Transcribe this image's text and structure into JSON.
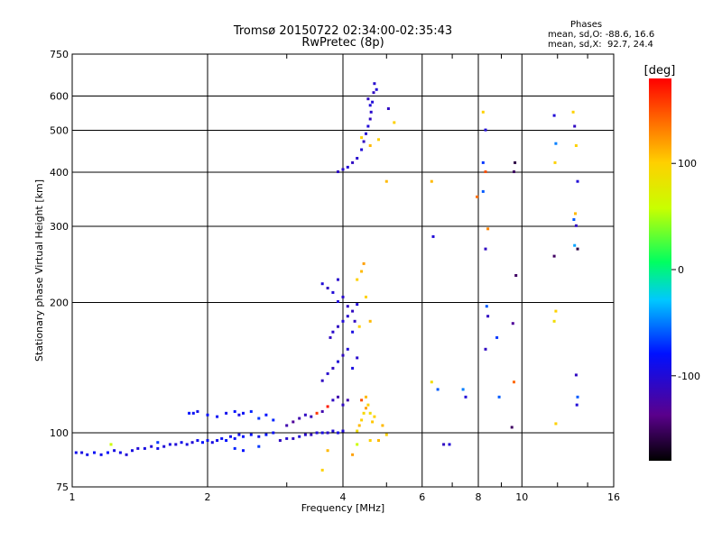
{
  "header": {
    "title_line1": "Tromsø 20150722 02:34:00-02:35:43",
    "title_line2": "RwPretec (8p)",
    "phases_heading": "Phases",
    "phases_o": "mean, sd,O: -88.6, 16.6",
    "phases_x": "mean, sd,X:  92.7, 24.4"
  },
  "colorbar": {
    "unit_label": "[deg]",
    "ticks": [
      {
        "value": 100,
        "label": "100"
      },
      {
        "value": 0,
        "label": "0"
      },
      {
        "value": -100,
        "label": "-100"
      }
    ],
    "range": [
      -180,
      180
    ]
  },
  "chart_data": {
    "type": "scatter",
    "xlabel": "Frequency [MHz]",
    "ylabel": "Stationary phase Virtual Height [km]",
    "x_scale": "log",
    "y_scale": "log",
    "xlim": [
      1,
      16
    ],
    "ylim": [
      75,
      750
    ],
    "x_ticks": [
      1,
      2,
      4,
      6,
      8,
      10,
      16
    ],
    "x_tick_labels": [
      "1",
      "2",
      "4",
      "6",
      "8",
      "10",
      "16"
    ],
    "y_ticks": [
      75,
      100,
      200,
      300,
      400,
      500,
      600,
      750
    ],
    "y_tick_labels": [
      "75",
      "100",
      "200",
      "300",
      "400",
      "500",
      "600",
      "750"
    ],
    "grid": true,
    "color_scale": "phase [deg], -180 to 180, black-purple-blue-cyan-green-yellow-orange-red",
    "points": [
      [
        1.02,
        90,
        -90
      ],
      [
        1.05,
        90,
        -95
      ],
      [
        1.08,
        89,
        -90
      ],
      [
        1.12,
        90,
        -85
      ],
      [
        1.16,
        89,
        -90
      ],
      [
        1.2,
        90,
        -80
      ],
      [
        1.24,
        91,
        -95
      ],
      [
        1.28,
        90,
        -90
      ],
      [
        1.32,
        89,
        -100
      ],
      [
        1.36,
        91,
        -95
      ],
      [
        1.4,
        92,
        -100
      ],
      [
        1.45,
        92,
        -95
      ],
      [
        1.5,
        93,
        -100
      ],
      [
        1.55,
        92,
        -90
      ],
      [
        1.6,
        93,
        -100
      ],
      [
        1.65,
        94,
        -95
      ],
      [
        1.7,
        94,
        -100
      ],
      [
        1.75,
        95,
        -90
      ],
      [
        1.8,
        94,
        -95
      ],
      [
        1.85,
        95,
        -100
      ],
      [
        1.9,
        96,
        -90
      ],
      [
        1.95,
        95,
        -80
      ],
      [
        2.0,
        96,
        -85
      ],
      [
        2.05,
        95,
        -95
      ],
      [
        2.1,
        96,
        -90
      ],
      [
        2.15,
        97,
        -85
      ],
      [
        2.2,
        96,
        -80
      ],
      [
        2.25,
        98,
        -90
      ],
      [
        2.3,
        97,
        -85
      ],
      [
        2.35,
        99,
        -90
      ],
      [
        2.4,
        98,
        -80
      ],
      [
        2.5,
        99,
        -85
      ],
      [
        2.6,
        98,
        -90
      ],
      [
        2.7,
        99,
        -80
      ],
      [
        2.8,
        100,
        -85
      ],
      [
        1.22,
        94,
        60
      ],
      [
        1.55,
        95,
        -70
      ],
      [
        2.3,
        92,
        -75
      ],
      [
        2.4,
        91,
        -80
      ],
      [
        2.6,
        93,
        -70
      ],
      [
        1.82,
        111,
        -80
      ],
      [
        1.86,
        111,
        -85
      ],
      [
        1.9,
        112,
        -90
      ],
      [
        2.0,
        110,
        -80
      ],
      [
        2.1,
        109,
        -85
      ],
      [
        2.2,
        111,
        -90
      ],
      [
        2.3,
        112,
        -80
      ],
      [
        2.35,
        110,
        -95
      ],
      [
        2.4,
        111,
        -85
      ],
      [
        2.5,
        112,
        -75
      ],
      [
        2.6,
        108,
        -70
      ],
      [
        2.7,
        110,
        -80
      ],
      [
        2.8,
        107,
        -75
      ],
      [
        2.9,
        96,
        -110
      ],
      [
        3.0,
        97,
        -105
      ],
      [
        3.1,
        97,
        -110
      ],
      [
        3.2,
        98,
        -100
      ],
      [
        3.3,
        99,
        -105
      ],
      [
        3.4,
        99,
        -110
      ],
      [
        3.5,
        100,
        -100
      ],
      [
        3.6,
        100,
        -95
      ],
      [
        3.7,
        100,
        -105
      ],
      [
        3.8,
        101,
        -100
      ],
      [
        3.9,
        100,
        -95
      ],
      [
        4.0,
        101,
        -100
      ],
      [
        3.0,
        104,
        -120
      ],
      [
        3.1,
        106,
        -130
      ],
      [
        3.2,
        108,
        -120
      ],
      [
        3.3,
        110,
        -110
      ],
      [
        3.4,
        109,
        -115
      ],
      [
        3.5,
        111,
        160
      ],
      [
        3.6,
        112,
        -120
      ],
      [
        3.7,
        115,
        170
      ],
      [
        3.8,
        119,
        -110
      ],
      [
        3.9,
        121,
        -120
      ],
      [
        4.0,
        116,
        -110
      ],
      [
        4.1,
        119,
        -120
      ],
      [
        3.6,
        132,
        -110
      ],
      [
        3.7,
        137,
        -105
      ],
      [
        3.8,
        141,
        -110
      ],
      [
        3.9,
        146,
        -100
      ],
      [
        4.0,
        151,
        -110
      ],
      [
        4.1,
        156,
        -100
      ],
      [
        4.2,
        141,
        -95
      ],
      [
        4.3,
        149,
        -105
      ],
      [
        3.75,
        166,
        -110
      ],
      [
        3.8,
        171,
        -105
      ],
      [
        3.9,
        176,
        -110
      ],
      [
        4.0,
        181,
        -100
      ],
      [
        4.1,
        186,
        -105
      ],
      [
        4.2,
        191,
        -110
      ],
      [
        4.3,
        198,
        -100
      ],
      [
        3.9,
        201,
        -100
      ],
      [
        4.0,
        206,
        -105
      ],
      [
        4.1,
        196,
        -110
      ],
      [
        3.8,
        211,
        -100
      ],
      [
        4.2,
        171,
        -95
      ],
      [
        3.7,
        216,
        -110
      ],
      [
        3.9,
        226,
        -105
      ],
      [
        3.6,
        221,
        -100
      ],
      [
        4.25,
        181,
        -110
      ],
      [
        4.3,
        101,
        90
      ],
      [
        4.35,
        104,
        110
      ],
      [
        4.4,
        107,
        100
      ],
      [
        4.45,
        111,
        95
      ],
      [
        4.5,
        114,
        120
      ],
      [
        4.55,
        116,
        100
      ],
      [
        4.6,
        111,
        90
      ],
      [
        4.65,
        106,
        105
      ],
      [
        4.7,
        109,
        100
      ],
      [
        4.4,
        119,
        150
      ],
      [
        4.5,
        121,
        110
      ],
      [
        4.6,
        96,
        100
      ],
      [
        4.8,
        96,
        110
      ],
      [
        5.0,
        99,
        100
      ],
      [
        4.3,
        94,
        60
      ],
      [
        4.9,
        104,
        110
      ],
      [
        4.2,
        89,
        120
      ],
      [
        3.7,
        91,
        110
      ],
      [
        3.6,
        82,
        100
      ],
      [
        4.3,
        226,
        100
      ],
      [
        4.4,
        236,
        110
      ],
      [
        4.45,
        246,
        120
      ],
      [
        4.5,
        206,
        100
      ],
      [
        4.35,
        176,
        100
      ],
      [
        4.6,
        181,
        110
      ],
      [
        3.9,
        401,
        -110
      ],
      [
        4.0,
        406,
        -105
      ],
      [
        4.1,
        411,
        -100
      ],
      [
        4.2,
        421,
        -110
      ],
      [
        4.3,
        431,
        -105
      ],
      [
        4.4,
        451,
        -100
      ],
      [
        4.45,
        471,
        -110
      ],
      [
        4.5,
        491,
        -105
      ],
      [
        4.55,
        511,
        -100
      ],
      [
        4.6,
        531,
        -110
      ],
      [
        4.62,
        551,
        -105
      ],
      [
        4.65,
        581,
        -100
      ],
      [
        4.68,
        611,
        -110
      ],
      [
        4.7,
        641,
        -105
      ],
      [
        4.75,
        621,
        -100
      ],
      [
        4.55,
        591,
        -110
      ],
      [
        4.6,
        571,
        -100
      ],
      [
        4.4,
        481,
        100
      ],
      [
        4.6,
        461,
        110
      ],
      [
        4.8,
        476,
        100
      ],
      [
        5.0,
        381,
        110
      ],
      [
        5.2,
        521,
        100
      ],
      [
        5.05,
        561,
        -110
      ],
      [
        6.3,
        381,
        110
      ],
      [
        6.35,
        284,
        -100
      ],
      [
        6.3,
        131,
        90
      ],
      [
        6.5,
        126,
        -60
      ],
      [
        6.7,
        94,
        -110
      ],
      [
        6.9,
        94,
        -100
      ],
      [
        7.4,
        126,
        -50
      ],
      [
        7.5,
        121,
        -100
      ],
      [
        7.95,
        351,
        140
      ],
      [
        8.2,
        551,
        100
      ],
      [
        8.3,
        501,
        -100
      ],
      [
        8.2,
        421,
        -70
      ],
      [
        8.3,
        401,
        150
      ],
      [
        8.2,
        361,
        -60
      ],
      [
        8.4,
        296,
        130
      ],
      [
        8.3,
        266,
        -110
      ],
      [
        8.35,
        196,
        -60
      ],
      [
        8.4,
        186,
        -110
      ],
      [
        8.3,
        156,
        -110
      ],
      [
        8.8,
        166,
        -70
      ],
      [
        8.9,
        121,
        -60
      ],
      [
        9.6,
        401,
        -150
      ],
      [
        9.65,
        421,
        -160
      ],
      [
        9.7,
        231,
        -150
      ],
      [
        9.55,
        179,
        -130
      ],
      [
        9.6,
        131,
        140
      ],
      [
        9.5,
        103,
        -150
      ],
      [
        11.8,
        541,
        -100
      ],
      [
        11.85,
        421,
        100
      ],
      [
        11.9,
        466,
        -50
      ],
      [
        11.8,
        256,
        -150
      ],
      [
        11.9,
        191,
        100
      ],
      [
        11.8,
        181,
        90
      ],
      [
        11.9,
        105,
        100
      ],
      [
        13.0,
        551,
        100
      ],
      [
        13.1,
        511,
        -110
      ],
      [
        13.2,
        461,
        100
      ],
      [
        13.3,
        381,
        -100
      ],
      [
        13.05,
        311,
        -60
      ],
      [
        13.15,
        321,
        110
      ],
      [
        13.2,
        301,
        -110
      ],
      [
        13.3,
        266,
        -160
      ],
      [
        13.1,
        271,
        -40
      ],
      [
        13.2,
        136,
        -110
      ],
      [
        13.3,
        121,
        -60
      ],
      [
        13.25,
        116,
        -100
      ]
    ]
  }
}
